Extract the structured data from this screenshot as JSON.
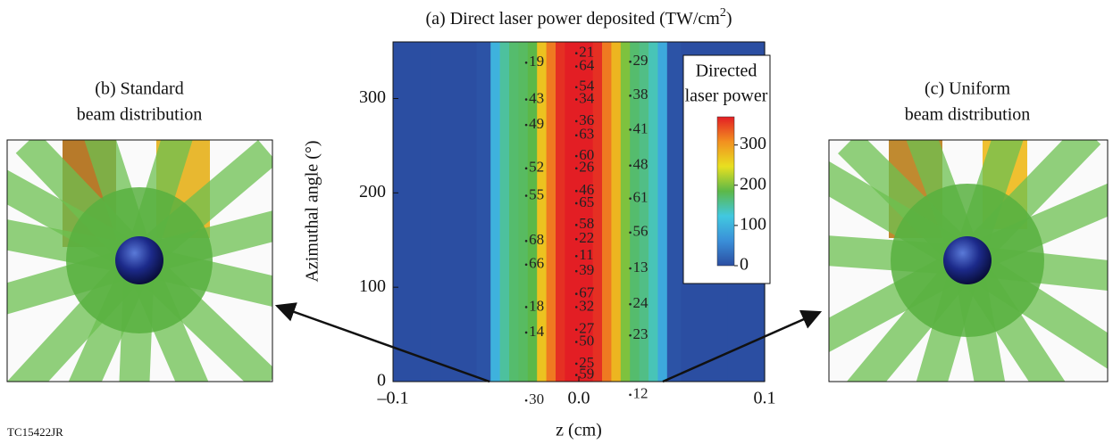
{
  "chart_data": {
    "type": "heatmap",
    "title": "(a) Direct laser power deposited (TW/cm",
    "title_superscript": "2",
    "title_end": ")",
    "x_label": "z (cm)",
    "y_label": "Azimuthal angle (°)",
    "xlim": [
      -0.1,
      0.1
    ],
    "xticks": [
      {
        "value": -0.1,
        "label": "–0.1"
      },
      {
        "value": 0,
        "label": "0.0"
      },
      0.1
    ],
    "ylim": [
      0,
      360
    ],
    "yticks": [
      0,
      100,
      200,
      300
    ],
    "profile": {
      "z": [
        -0.1,
        -0.06,
        -0.05,
        -0.045,
        -0.04,
        -0.035,
        -0.03,
        -0.025,
        -0.02,
        -0.015,
        -0.01,
        -0.005,
        0,
        0.005,
        0.01,
        0.015,
        0.02,
        0.025,
        0.03,
        0.035,
        0.04,
        0.045,
        0.05,
        0.06,
        0.1
      ],
      "values": [
        0,
        0,
        5,
        100,
        150,
        170,
        175,
        185,
        270,
        320,
        360,
        370,
        370,
        370,
        360,
        320,
        280,
        200,
        170,
        160,
        140,
        90,
        5,
        0,
        0
      ]
    },
    "colorbar": {
      "label": [
        "Directed",
        "laser power"
      ],
      "lim": [
        0,
        370
      ],
      "ticks": [
        0,
        100,
        200,
        300
      ],
      "colors": [
        "#2b4ea2",
        "#3a8fd8",
        "#41c8e0",
        "#5cb848",
        "#e8e020",
        "#f29020",
        "#e31e24"
      ]
    },
    "beam_labels": [
      {
        "text": "19",
        "z": -0.024,
        "angle": 338
      },
      {
        "text": "43",
        "z": -0.024,
        "angle": 299
      },
      {
        "text": "49",
        "z": -0.024,
        "angle": 272
      },
      {
        "text": "52",
        "z": -0.024,
        "angle": 226
      },
      {
        "text": "55",
        "z": -0.024,
        "angle": 197
      },
      {
        "text": "68",
        "z": -0.024,
        "angle": 149
      },
      {
        "text": "66",
        "z": -0.024,
        "angle": 124
      },
      {
        "text": "18",
        "z": -0.024,
        "angle": 79
      },
      {
        "text": "14",
        "z": -0.024,
        "angle": 52
      },
      {
        "text": "30",
        "z": -0.024,
        "angle": -20
      },
      {
        "text": "21",
        "z": 0.003,
        "angle": 348
      },
      {
        "text": "64",
        "z": 0.003,
        "angle": 334
      },
      {
        "text": "54",
        "z": 0.003,
        "angle": 312
      },
      {
        "text": "34",
        "z": 0.003,
        "angle": 299
      },
      {
        "text": "36",
        "z": 0.003,
        "angle": 276
      },
      {
        "text": "63",
        "z": 0.003,
        "angle": 261
      },
      {
        "text": "60",
        "z": 0.003,
        "angle": 239
      },
      {
        "text": "26",
        "z": 0.003,
        "angle": 226
      },
      {
        "text": "46",
        "z": 0.003,
        "angle": 202
      },
      {
        "text": "65",
        "z": 0.003,
        "angle": 189
      },
      {
        "text": "58",
        "z": 0.003,
        "angle": 166
      },
      {
        "text": "22",
        "z": 0.003,
        "angle": 151
      },
      {
        "text": "11",
        "z": 0.003,
        "angle": 133
      },
      {
        "text": "39",
        "z": 0.003,
        "angle": 117
      },
      {
        "text": "67",
        "z": 0.003,
        "angle": 93
      },
      {
        "text": "32",
        "z": 0.003,
        "angle": 79
      },
      {
        "text": "27",
        "z": 0.003,
        "angle": 55
      },
      {
        "text": "50",
        "z": 0.003,
        "angle": 42
      },
      {
        "text": "25",
        "z": 0.003,
        "angle": 19
      },
      {
        "text": "59",
        "z": 0.003,
        "angle": 7
      },
      {
        "text": "29",
        "z": 0.032,
        "angle": 339
      },
      {
        "text": "38",
        "z": 0.032,
        "angle": 303
      },
      {
        "text": "41",
        "z": 0.032,
        "angle": 267
      },
      {
        "text": "48",
        "z": 0.032,
        "angle": 229
      },
      {
        "text": "61",
        "z": 0.032,
        "angle": 194
      },
      {
        "text": "56",
        "z": 0.032,
        "angle": 158
      },
      {
        "text": "13",
        "z": 0.032,
        "angle": 120
      },
      {
        "text": "24",
        "z": 0.032,
        "angle": 82
      },
      {
        "text": "23",
        "z": 0.032,
        "angle": 49
      },
      {
        "text": "12",
        "z": 0.032,
        "angle": -14
      }
    ]
  },
  "panels": [
    {
      "title": [
        "(b) Standard",
        "beam distribution"
      ]
    },
    {
      "title": [
        "(c) Uniform",
        "beam distribution"
      ]
    }
  ],
  "figure_id": "TC15422JR"
}
